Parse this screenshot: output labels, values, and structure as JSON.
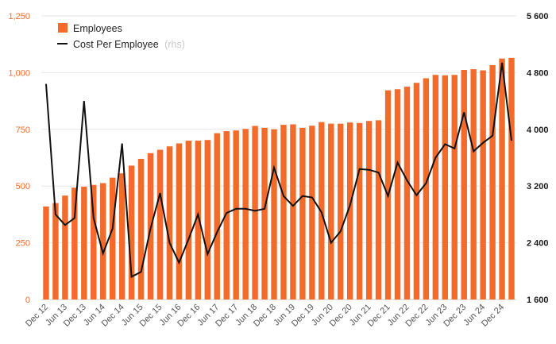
{
  "chart_data": {
    "type": "bar+line",
    "colors": {
      "bars": "#f26b2b",
      "line": "#111111",
      "grid": "#e6e6e6",
      "left_axis_text": "#f26b2b",
      "right_axis_text": "#1a1a1a",
      "x_axis_text": "#555555"
    },
    "left_axis": {
      "range": [
        0,
        1250
      ],
      "ticks": [
        0,
        250,
        500,
        750,
        1000,
        1250
      ],
      "tick_labels": [
        "0",
        "250",
        "500",
        "750",
        "1,000",
        "1,250"
      ]
    },
    "right_axis": {
      "range": [
        1600,
        5600
      ],
      "ticks": [
        1600,
        2400,
        3200,
        4000,
        4800,
        5600
      ],
      "tick_labels": [
        "1 600",
        "2 400",
        "3 200",
        "4 000",
        "4 800",
        "5 600"
      ]
    },
    "x_tick_labels": [
      "Dec 12",
      "Jun 13",
      "Dec 13",
      "Jun 14",
      "Dec 14",
      "Jun 15",
      "Dec 15",
      "Jun 16",
      "Dec 16",
      "Jun 17",
      "Dec 17",
      "Jun 18",
      "Dec 18",
      "Jun 19",
      "Dec 19",
      "Jun 20",
      "Dec 20",
      "Jun 21",
      "Dec 21",
      "Jun 22",
      "Dec 22",
      "Jun 23",
      "Dec 23",
      "Jun 24",
      "Dec 24"
    ],
    "series": [
      {
        "name": "Employees",
        "axis": "left",
        "kind": "bar",
        "values": [
          410,
          425,
          458,
          493,
          497,
          505,
          513,
          537,
          556,
          590,
          620,
          645,
          660,
          675,
          688,
          700,
          700,
          703,
          733,
          742,
          745,
          752,
          765,
          757,
          750,
          770,
          772,
          757,
          766,
          782,
          775,
          775,
          780,
          778,
          787,
          790,
          922,
          927,
          938,
          955,
          975,
          990,
          988,
          990,
          1012,
          1015,
          1010,
          1033,
          1062,
          1065
        ]
      },
      {
        "name": "Cost Per Employee",
        "note": "(rhs)",
        "axis": "right",
        "kind": "line",
        "values": [
          4640,
          2800,
          2650,
          2750,
          4400,
          2750,
          2250,
          2600,
          3800,
          1920,
          1990,
          2600,
          3100,
          2400,
          2120,
          2450,
          2800,
          2240,
          2550,
          2820,
          2880,
          2880,
          2850,
          2880,
          3460,
          3060,
          2920,
          3060,
          3040,
          2830,
          2400,
          2560,
          2930,
          3440,
          3430,
          3390,
          3060,
          3530,
          3280,
          3070,
          3240,
          3600,
          3790,
          3730,
          4240,
          3690,
          3810,
          3910,
          4940,
          3840
        ]
      }
    ],
    "legend": {
      "placement": "top-left",
      "items": [
        {
          "label": "Employees",
          "note": ""
        },
        {
          "label": "Cost Per Employee",
          "note": "(rhs)"
        }
      ]
    }
  }
}
